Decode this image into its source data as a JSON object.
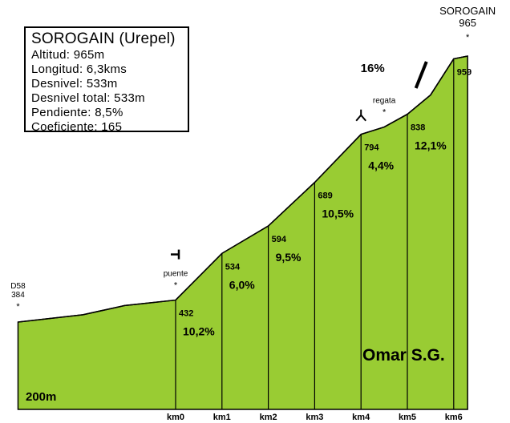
{
  "info": {
    "title": "SOROGAIN (Urepel)",
    "lines": [
      "Altitud: 965m",
      "Longitud: 6,3kms",
      "Desnivel: 533m",
      "Desnivel total:  533m",
      "Pendiente: 8,5%",
      "Coeficiente:  165"
    ]
  },
  "colors": {
    "fill": "#99cc33",
    "stroke": "#000000",
    "background": "#ffffff"
  },
  "chart_data": {
    "type": "area",
    "title": "SOROGAIN (Urepel)",
    "x_unit": "km",
    "ylim": [
      200,
      965
    ],
    "base_label": "200m",
    "profile": [
      {
        "km": -3.4,
        "alt": 384
      },
      {
        "km": -2.0,
        "alt": 400
      },
      {
        "km": -1.1,
        "alt": 420
      },
      {
        "km": 0.0,
        "alt": 432
      },
      {
        "km": 1.0,
        "alt": 534
      },
      {
        "km": 2.0,
        "alt": 594
      },
      {
        "km": 3.0,
        "alt": 689
      },
      {
        "km": 4.0,
        "alt": 794
      },
      {
        "km": 4.5,
        "alt": 810
      },
      {
        "km": 5.0,
        "alt": 838
      },
      {
        "km": 5.5,
        "alt": 880
      },
      {
        "km": 6.0,
        "alt": 959
      },
      {
        "km": 6.3,
        "alt": 965
      }
    ],
    "km_markers": [
      {
        "km": 0,
        "label": "km0"
      },
      {
        "km": 1,
        "label": "km1"
      },
      {
        "km": 2,
        "label": "km2"
      },
      {
        "km": 3,
        "label": "km3"
      },
      {
        "km": 4,
        "label": "km4"
      },
      {
        "km": 5,
        "label": "km5"
      },
      {
        "km": 6,
        "label": "km6"
      }
    ],
    "segments": [
      {
        "km": 0,
        "alt": 432,
        "alt_label": "432",
        "grade": "10,2%"
      },
      {
        "km": 1,
        "alt": 534,
        "alt_label": "534",
        "grade": "6,0%"
      },
      {
        "km": 2,
        "alt": 594,
        "alt_label": "594",
        "grade": "9,5%"
      },
      {
        "km": 3,
        "alt": 689,
        "alt_label": "689",
        "grade": "10,5%"
      },
      {
        "km": 4,
        "alt": 794,
        "alt_label": "794",
        "grade": "4,4%"
      },
      {
        "km": 5,
        "alt": 838,
        "alt_label": "838",
        "grade": "12,1%"
      },
      {
        "km": 6,
        "alt": 959,
        "alt_label": "959",
        "grade": ""
      }
    ],
    "points_of_interest": [
      {
        "km": -3.4,
        "alt": 384,
        "lines": [
          "D58",
          "384"
        ]
      },
      {
        "km": 0.0,
        "alt": 432,
        "lines": [
          "puente"
        ],
        "symbol": "bridge-icon"
      },
      {
        "km": 4.5,
        "alt": 810,
        "lines": [
          "regata"
        ],
        "symbol": "fork-icon"
      },
      {
        "km": 6.3,
        "alt": 965,
        "lines": [
          "SOROGAIN",
          "965"
        ]
      }
    ],
    "max_grade": {
      "label": "16%",
      "km_from": 5.6,
      "km_to": 6.0
    },
    "author": "Omar S.G."
  }
}
